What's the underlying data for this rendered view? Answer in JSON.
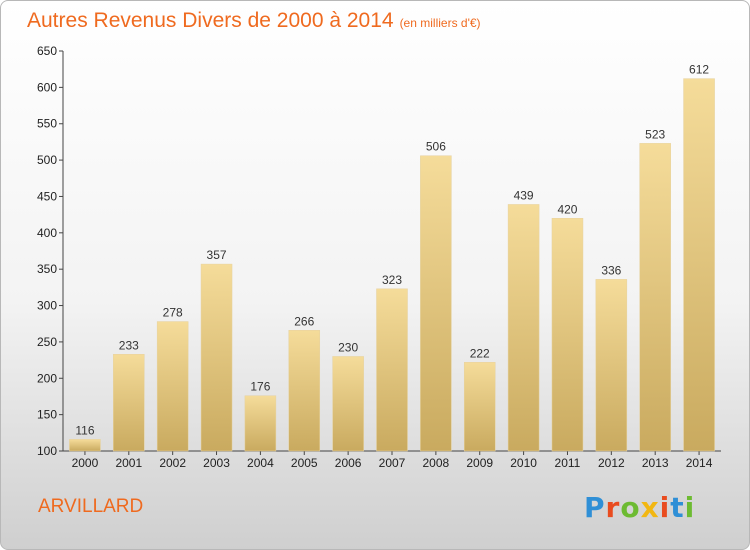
{
  "title": "Autres Revenus Divers de 2000 à 2014",
  "title_unit": "(en milliers d'€)",
  "commune": "ARVILLARD",
  "logo": {
    "text": "Proxiti",
    "colors": [
      "#2f8fd6",
      "#e94c1f",
      "#6dbb32",
      "#f2b712",
      "#e94c1f",
      "#2f8fd6",
      "#6dbb32"
    ]
  },
  "colors": {
    "accent": "#ef6a1f",
    "bar_top": "#f5dc9a",
    "bar_bottom": "#c9aa5f"
  },
  "chart_data": {
    "type": "bar",
    "categories": [
      "2000",
      "2001",
      "2002",
      "2003",
      "2004",
      "2005",
      "2006",
      "2007",
      "2008",
      "2009",
      "2010",
      "2011",
      "2012",
      "2013",
      "2014"
    ],
    "values": [
      116,
      233,
      278,
      357,
      176,
      266,
      230,
      323,
      506,
      222,
      439,
      420,
      336,
      523,
      612
    ],
    "value_labels": [
      "116",
      "233",
      "278",
      "357",
      "176",
      "266",
      "230",
      "323",
      "506",
      "222",
      "439",
      "420",
      "336",
      "523",
      "612"
    ],
    "ylim": [
      100,
      650
    ],
    "yticks": [
      "100",
      "150",
      "200",
      "250",
      "300",
      "350",
      "400",
      "450",
      "500",
      "550",
      "600",
      "650"
    ],
    "grid": false,
    "legend": "none"
  }
}
